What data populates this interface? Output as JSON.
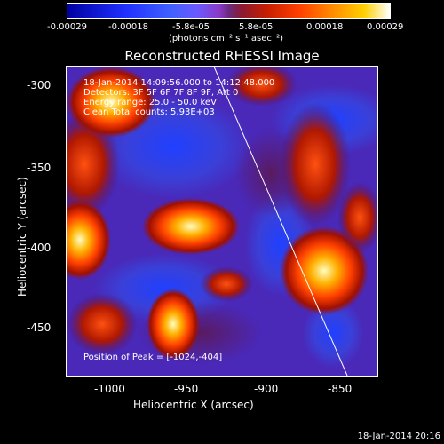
{
  "colorbar": {
    "ticks": [
      "-0.00029",
      "-0.00018",
      "-5.8e-05",
      "5.8e-05",
      "0.00018",
      "0.00029"
    ],
    "units": "(photons cm⁻² s⁻¹ asec⁻²)"
  },
  "title": "Reconstructed RHESSI Image",
  "info": {
    "time": "18-Jan-2014 14:09:56.000 to 14:12:48.000",
    "detectors": "Detectors: 3F 5F 6F 7F 8F 9F, Att 0",
    "energy": "Energy range: 25.0 - 50.0 keV",
    "clean": "Clean    Total counts: 5.93E+03",
    "peak": "Position of Peak = [-1024,-404]"
  },
  "axes": {
    "xlabel": "Heliocentric X (arcsec)",
    "ylabel": "Heliocentric Y (arcsec)",
    "xticks": [
      "-1000",
      "-950",
      "-900",
      "-850"
    ],
    "yticks": [
      "-300",
      "-350",
      "-400",
      "-450"
    ]
  },
  "footer": "18-Jan-2014 20:16"
}
